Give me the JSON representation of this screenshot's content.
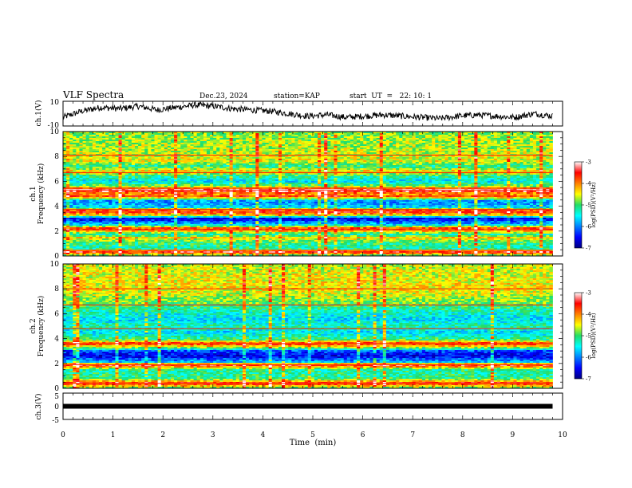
{
  "chart_data": {
    "type": "heatmap",
    "header": {
      "title": "VLF Spectra",
      "date": "Dec.23, 2024",
      "station": "station=KAP",
      "start": "start  UT  =   22: 10: 1"
    },
    "x_axis": {
      "label": "Time  (min)",
      "range": [
        0,
        10
      ],
      "ticks": [
        "0",
        "1",
        "2",
        "3",
        "4",
        "5",
        "6",
        "7",
        "8",
        "9",
        "10"
      ],
      "data_end_min": 9.8
    },
    "panels": [
      {
        "name": "ch1-waveform",
        "type": "line",
        "ylabel": "ch.1(V)",
        "yrange": [
          -10,
          10
        ],
        "yticks": [
          "10",
          "-10"
        ],
        "mean_trace_v": [
          -3,
          2,
          5,
          4,
          6,
          3,
          5,
          7,
          6,
          4,
          3,
          2,
          0,
          -2,
          -1,
          -3,
          -2,
          -1,
          -2,
          -3,
          -4,
          -2,
          -1,
          -2,
          -3,
          0,
          -2
        ]
      },
      {
        "name": "ch1-spectrogram",
        "type": "heatmap",
        "ylabel": "ch.1\nFrequency (kHz)",
        "yrange": [
          0,
          10
        ],
        "yticks": [
          "0",
          "2",
          "4",
          "6",
          "8",
          "10"
        ],
        "band_profile_log_psd": [
          [
            0.0,
            -5.2
          ],
          [
            0.3,
            -3.4
          ],
          [
            0.6,
            -5.3
          ],
          [
            1.1,
            -5.0
          ],
          [
            1.5,
            -4.3
          ],
          [
            1.7,
            -5.4
          ],
          [
            2.2,
            -3.5
          ],
          [
            2.5,
            -5.6
          ],
          [
            3.0,
            -6.6
          ],
          [
            3.3,
            -4.3
          ],
          [
            3.6,
            -3.4
          ],
          [
            3.9,
            -5.6
          ],
          [
            4.4,
            -6.0
          ],
          [
            4.8,
            -3.7
          ],
          [
            5.0,
            -4.2
          ],
          [
            5.3,
            -3.0
          ],
          [
            5.5,
            -4.5
          ],
          [
            6.0,
            -5.6
          ],
          [
            6.5,
            -5.0
          ],
          [
            6.8,
            -4.3
          ],
          [
            7.2,
            -5.2
          ],
          [
            7.6,
            -4.5
          ],
          [
            8.2,
            -4.6
          ],
          [
            9.0,
            -4.7
          ],
          [
            10.0,
            -4.8
          ]
        ],
        "narrowband_lines_khz": [
          0.45,
          2.1,
          3.75,
          5.3,
          5.45,
          6.7,
          8.1
        ],
        "colorbar": {
          "label": "log(PSD)(V²/Hz)",
          "range": [
            -7,
            -3
          ],
          "ticks": [
            "-3",
            "-4",
            "-5",
            "-6",
            "-7"
          ]
        }
      },
      {
        "name": "ch2-spectrogram",
        "type": "heatmap",
        "ylabel": "ch.2\nFrequency (kHz)",
        "yrange": [
          0,
          10
        ],
        "yticks": [
          "0",
          "2",
          "4",
          "6",
          "8",
          "10"
        ],
        "band_profile_log_psd": [
          [
            0.0,
            -5.0
          ],
          [
            0.4,
            -3.5
          ],
          [
            0.8,
            -5.1
          ],
          [
            1.5,
            -5.2
          ],
          [
            1.9,
            -3.3
          ],
          [
            2.1,
            -5.7
          ],
          [
            2.6,
            -6.6
          ],
          [
            3.0,
            -6.2
          ],
          [
            3.3,
            -4.6
          ],
          [
            3.6,
            -3.6
          ],
          [
            3.9,
            -5.0
          ],
          [
            4.5,
            -5.6
          ],
          [
            5.0,
            -5.2
          ],
          [
            5.5,
            -5.6
          ],
          [
            6.0,
            -5.4
          ],
          [
            6.8,
            -4.9
          ],
          [
            7.5,
            -4.6
          ],
          [
            8.0,
            -4.4
          ],
          [
            9.0,
            -4.5
          ],
          [
            10.0,
            -4.6
          ]
        ],
        "narrowband_lines_khz": [
          0.4,
          1.9,
          3.6,
          4.8,
          6.7,
          8.0
        ],
        "colorbar": {
          "label": "log(PSD)(V²/Hz)",
          "range": [
            -7,
            -3
          ],
          "ticks": [
            "-3",
            "-4",
            "-5",
            "-6",
            "-7"
          ]
        }
      },
      {
        "name": "ch3-waveform",
        "type": "line",
        "ylabel": "ch.3(V)",
        "yrange": [
          -5,
          5
        ],
        "yticks": [
          "5",
          "0",
          "-5"
        ],
        "trace_value_v": 0
      }
    ]
  }
}
